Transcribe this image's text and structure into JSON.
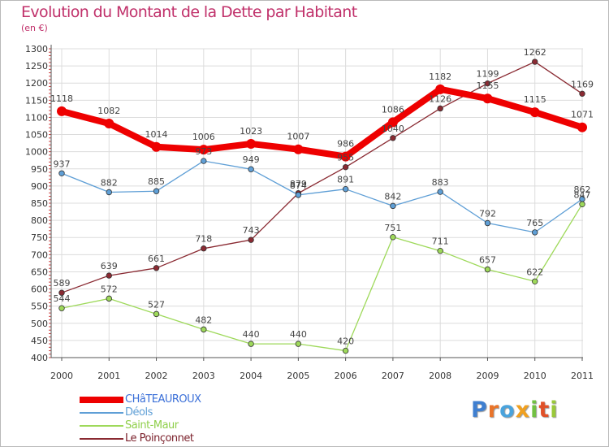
{
  "title": "Evolution du Montant de la Dette par Habitant",
  "unit": "(en €)",
  "logo": {
    "letters": [
      "P",
      "r",
      "o",
      "x",
      "i",
      "t",
      "i"
    ],
    "colors": [
      "#3f7fd0",
      "#e9742a",
      "#4aa3dc",
      "#f0a020",
      "#72c043",
      "#e05028",
      "#9ac93a"
    ]
  },
  "chart_data": {
    "type": "line",
    "title": "Evolution du Montant de la Dette par Habitant",
    "ylabel": "(en €)",
    "xlabel": "",
    "categories": [
      "2000",
      "2001",
      "2002",
      "2003",
      "2004",
      "2005",
      "2006",
      "2007",
      "2008",
      "2009",
      "2010",
      "2011"
    ],
    "ylim": [
      400,
      1300
    ],
    "yticks": [
      "400",
      "450",
      "500",
      "550",
      "600",
      "650",
      "700",
      "750",
      "800",
      "850",
      "900",
      "950",
      "1000",
      "1050",
      "1100",
      "1150",
      "1200",
      "1250",
      "1300"
    ],
    "grid": true,
    "legend_position": "bottom-left",
    "series": [
      {
        "name": "CHâTEAUROUX",
        "color": "#ee0000",
        "values": [
          1118,
          1082,
          1014,
          1006,
          1023,
          1007,
          986,
          1086,
          1182,
          1155,
          1115,
          1071
        ],
        "labels": [
          "1118",
          "1082",
          "1014",
          "1006",
          "1023",
          "1007",
          "986",
          "1086",
          "1182",
          "1155",
          "1115",
          "1071"
        ]
      },
      {
        "name": "Déols",
        "color": "#5f9fd6",
        "values": [
          937,
          882,
          885,
          973,
          949,
          874,
          891,
          842,
          883,
          792,
          765,
          862
        ],
        "labels": [
          "937",
          "882",
          "885",
          "973",
          "949",
          "874",
          "891",
          "842",
          "883",
          "792",
          "765",
          "862"
        ]
      },
      {
        "name": "Saint-Maur",
        "color": "#9ed95a",
        "values": [
          544,
          572,
          527,
          482,
          440,
          440,
          420,
          751,
          711,
          657,
          622,
          847
        ],
        "labels": [
          "544",
          "572",
          "527",
          "482",
          "440",
          "440",
          "420",
          "751",
          "711",
          "657",
          "622",
          "847"
        ]
      },
      {
        "name": "Le Poinçonnet",
        "color": "#8a2a32",
        "values": [
          589,
          639,
          661,
          718,
          743,
          879,
          955,
          1040,
          1126,
          1199,
          1262,
          1169
        ],
        "labels": [
          "589",
          "639",
          "661",
          "718",
          "743",
          "879",
          "955",
          "1040",
          "1126",
          "1199",
          "1262",
          "1169"
        ]
      }
    ]
  }
}
